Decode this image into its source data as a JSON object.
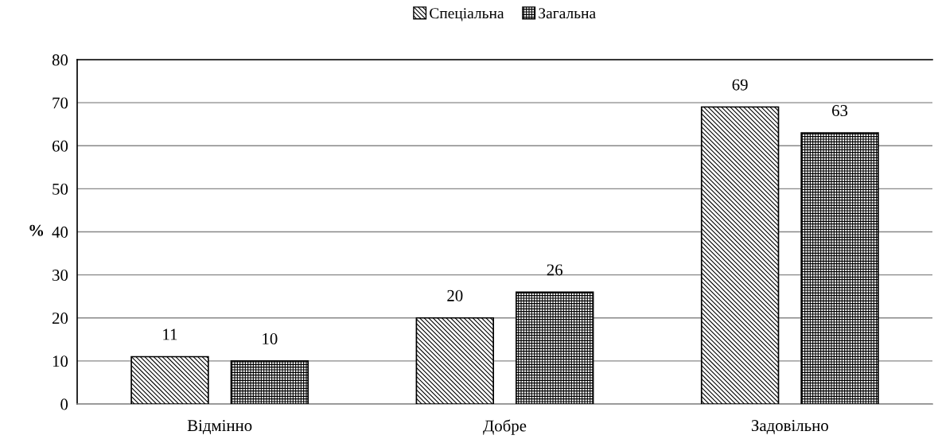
{
  "chart_data": {
    "type": "bar",
    "ylabel": "%",
    "categories": [
      "Відмінно",
      "Добре",
      "Задовільно"
    ],
    "series": [
      {
        "name": "Спеціальна",
        "color": "#000000",
        "values": [
          11,
          20,
          69
        ]
      },
      {
        "name": "Загальна",
        "color": "#000000",
        "values": [
          10,
          26,
          63
        ]
      }
    ],
    "ylim": [
      0,
      80
    ],
    "yticks": [
      0,
      10,
      20,
      30,
      40,
      50,
      60,
      70,
      80
    ],
    "grid": "y",
    "legend": "top",
    "data_labels": true
  }
}
